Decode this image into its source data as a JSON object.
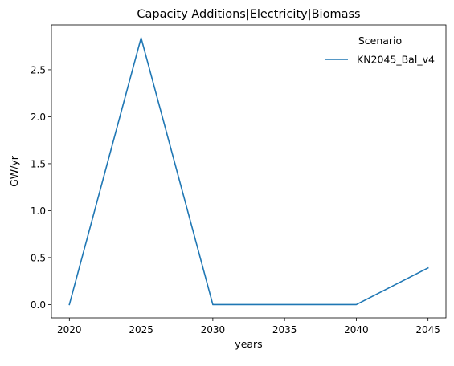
{
  "chart_data": {
    "type": "line",
    "title": "Capacity Additions|Electricity|Biomass",
    "xlabel": "years",
    "ylabel": "GW/yr",
    "x": [
      2020,
      2025,
      2030,
      2035,
      2040,
      2045
    ],
    "xticks": [
      "2020",
      "2025",
      "2030",
      "2035",
      "2040",
      "2045"
    ],
    "yticks": [
      "0.0",
      "0.5",
      "1.0",
      "1.5",
      "2.0",
      "2.5"
    ],
    "xlim": [
      2018.75,
      2046.25
    ],
    "ylim": [
      -0.1418,
      2.978
    ],
    "legend": {
      "title": "Scenario",
      "placement": "top-right"
    },
    "grid": false,
    "series": [
      {
        "name": "KN2045_Bal_v4",
        "color": "#1f77b4",
        "values": [
          0.0,
          2.84,
          0.0,
          0.0,
          0.0,
          0.39
        ]
      }
    ]
  }
}
